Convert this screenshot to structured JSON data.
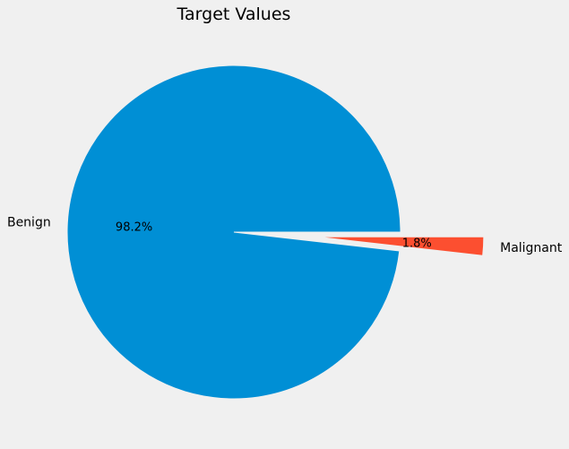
{
  "chart_data": {
    "type": "pie",
    "title": "Target Values",
    "labels": [
      "Benign",
      "Malignant"
    ],
    "values": [
      98.2,
      1.8
    ],
    "percent_labels": [
      "98.2%",
      "1.8%"
    ],
    "colors": [
      "#008fd5",
      "#fc4f30"
    ],
    "explode": [
      0,
      0.5
    ],
    "background": "#f0f0f0"
  }
}
